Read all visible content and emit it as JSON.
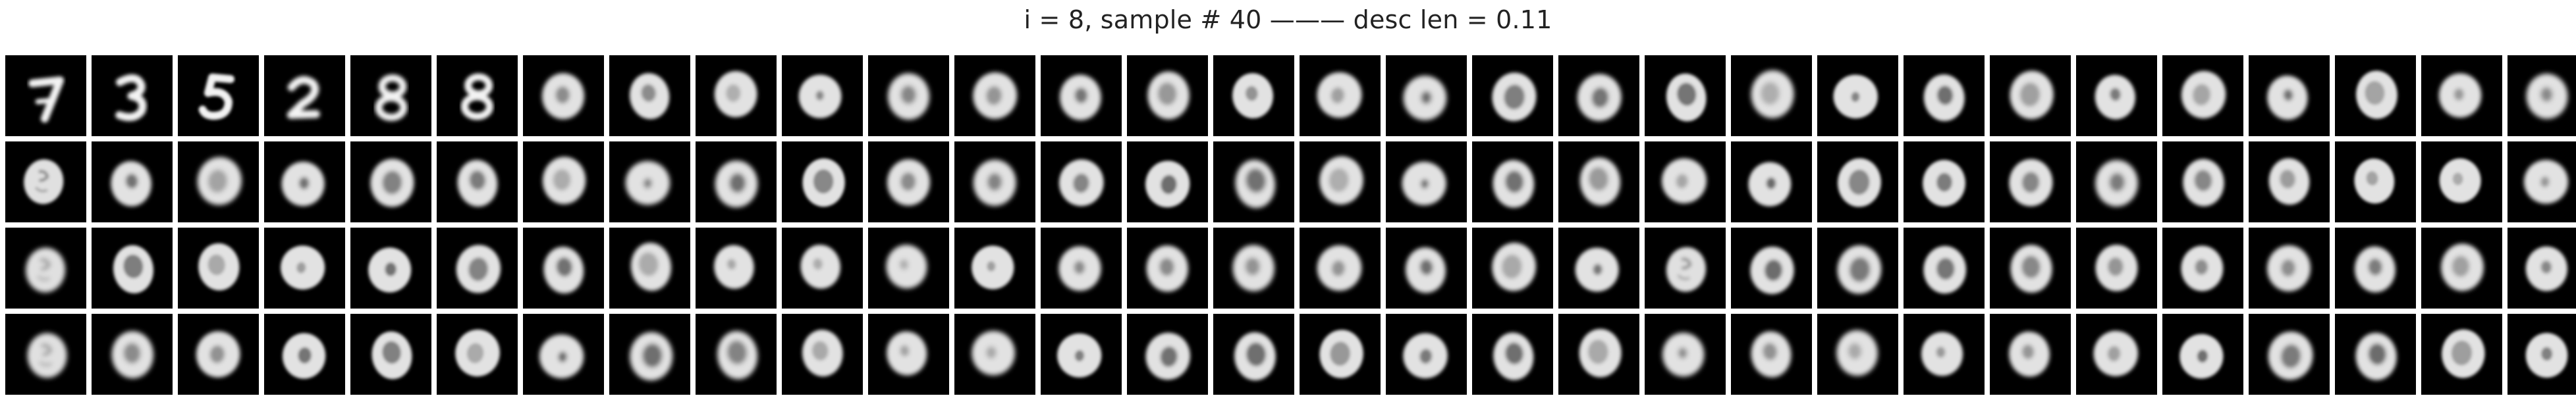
{
  "figure": {
    "title": "i = 8, sample # 40 ——— desc len = 0.11",
    "rows": 4,
    "cols": 30,
    "background_color": "#ffffff",
    "tile_color": "#000000",
    "glyph_color": "#f3f3f3"
  },
  "samples": [
    [
      "7",
      "3",
      "5",
      "2",
      "8",
      "8",
      "0",
      "0",
      "0",
      "0",
      "0",
      "0",
      "0",
      "0",
      "0",
      "0",
      "0",
      "0",
      "0",
      "0",
      "0",
      "0",
      "0",
      "0",
      "0",
      "0",
      "0",
      "0",
      "0",
      "0"
    ],
    [
      "6",
      "0",
      "0",
      "0",
      "0",
      "0",
      "0",
      "0",
      "0",
      "0",
      "0",
      "0",
      "0",
      "0",
      "0",
      "0",
      "0",
      "0",
      "0",
      "0",
      "0",
      "0",
      "0",
      "0",
      "0",
      "0",
      "0",
      "0",
      "0",
      "0"
    ],
    [
      "6",
      "0",
      "0",
      "0",
      "0",
      "0",
      "0",
      "0",
      "0",
      "0",
      "0",
      "0",
      "0",
      "0",
      "0",
      "0",
      "0",
      "0",
      "0",
      "6",
      "0",
      "0",
      "0",
      "0",
      "0",
      "0",
      "0",
      "0",
      "0",
      "0"
    ],
    [
      "6",
      "0",
      "0",
      "0",
      "0",
      "0",
      "0",
      "0",
      "0",
      "0",
      "0",
      "0",
      "0",
      "0",
      "0",
      "0",
      "0",
      "0",
      "0",
      "0",
      "0",
      "0",
      "0",
      "0",
      "0",
      "0",
      "0",
      "0",
      "0",
      "0"
    ]
  ]
}
